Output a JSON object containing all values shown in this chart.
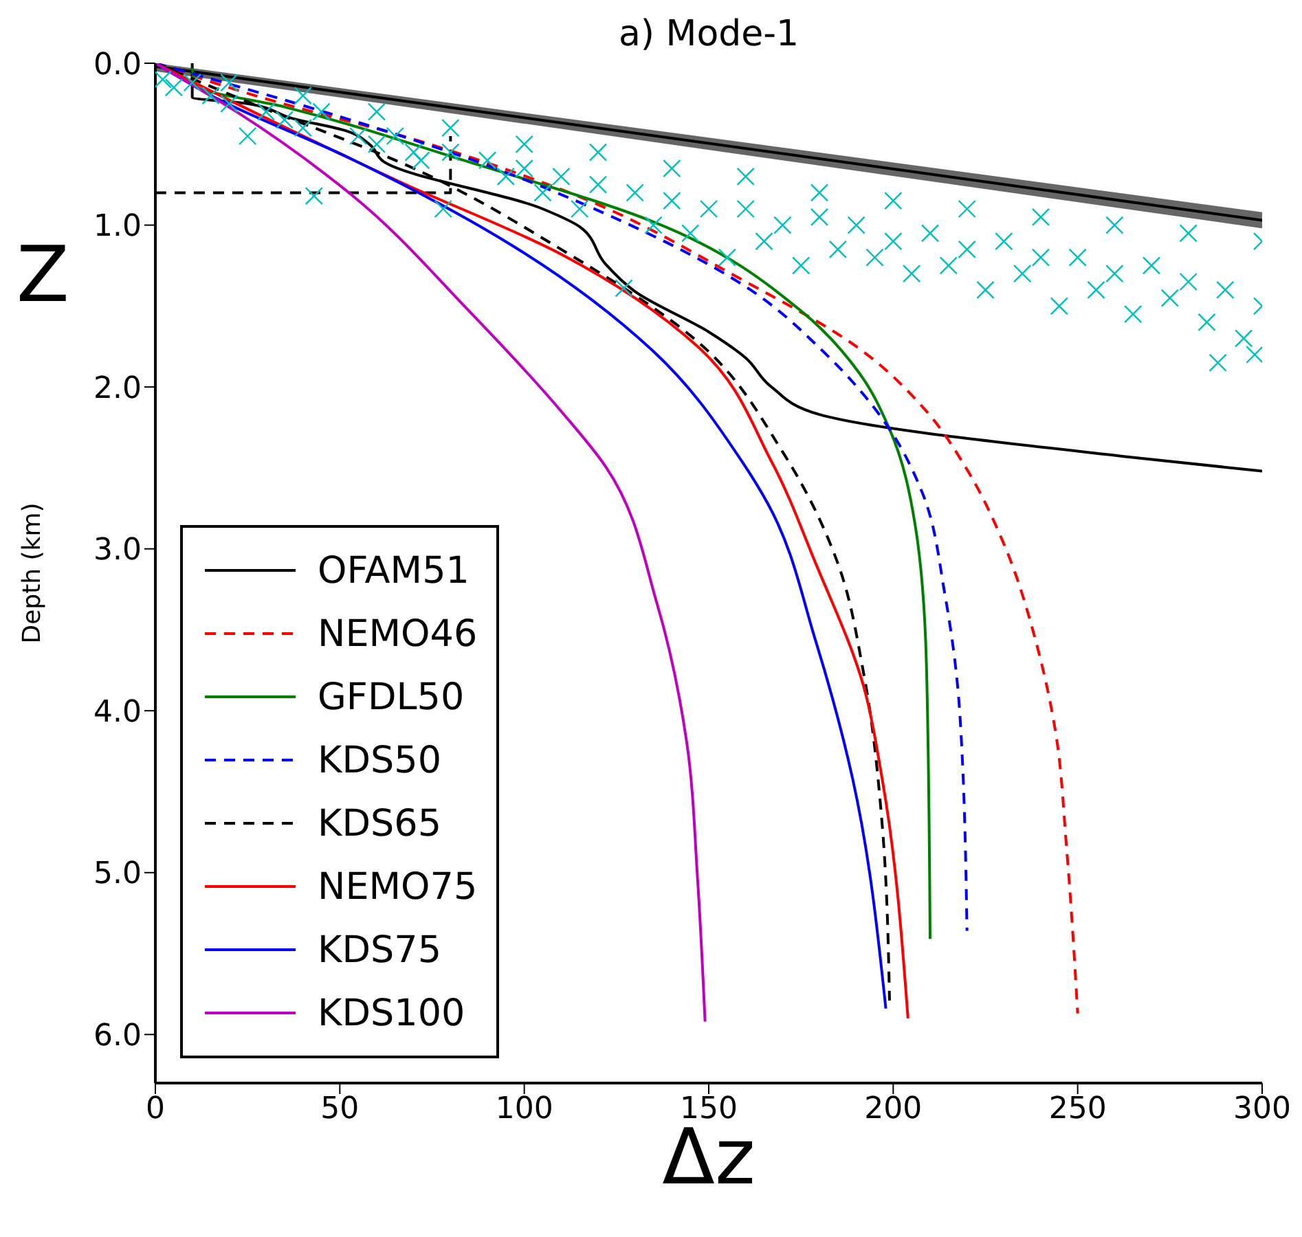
{
  "chart_data": {
    "type": "line",
    "title": "a) Mode-1",
    "xlabel": "Δz",
    "ylabel": "Depth (km)",
    "annotations": [
      "Z"
    ],
    "xlim": [
      0,
      300
    ],
    "xticks": [
      0,
      50,
      100,
      150,
      200,
      250,
      300
    ],
    "ylim": [
      6.3,
      0
    ],
    "yticks": [
      {
        "value": 0,
        "label": "0.0"
      },
      {
        "value": 1,
        "label": "1.0"
      },
      {
        "value": 2,
        "label": "2.0"
      },
      {
        "value": 3,
        "label": "3.0"
      },
      {
        "value": 4,
        "label": "4.0"
      },
      {
        "value": 5,
        "label": "5.0"
      },
      {
        "value": 6,
        "label": "6.0"
      }
    ],
    "grid": false,
    "legend": "bottom left",
    "line_style": "solid",
    "series": [
      {
        "type": "scatter",
        "marker": "cross",
        "color": "#00bfbf",
        "x": [
          2,
          5,
          10,
          15,
          20,
          25,
          30,
          35,
          40,
          43,
          45,
          55,
          60,
          65,
          70,
          72,
          78,
          80,
          90,
          95,
          100,
          105,
          110,
          115,
          120,
          127,
          130,
          135,
          140,
          145,
          150,
          155,
          160,
          165,
          170,
          175,
          180,
          185,
          190,
          195,
          200,
          205,
          210,
          215,
          220,
          225,
          230,
          235,
          240,
          245,
          250,
          255,
          260,
          265,
          270,
          275,
          280,
          285,
          288,
          290,
          295,
          300,
          298,
          260,
          240,
          220,
          200,
          180,
          160,
          140,
          120,
          100,
          80,
          60,
          40,
          20,
          280,
          300
        ],
        "values": [
          0.1,
          0.15,
          0.12,
          0.2,
          0.25,
          0.45,
          0.3,
          0.35,
          0.4,
          0.82,
          0.3,
          0.45,
          0.5,
          0.45,
          0.55,
          0.6,
          0.9,
          0.55,
          0.6,
          0.7,
          0.65,
          0.8,
          0.7,
          0.9,
          0.75,
          1.39,
          0.8,
          1.0,
          0.85,
          1.05,
          0.9,
          1.2,
          0.9,
          1.1,
          1.0,
          1.25,
          0.95,
          1.15,
          1.0,
          1.2,
          1.1,
          1.3,
          1.05,
          1.25,
          1.15,
          1.4,
          1.1,
          1.3,
          1.2,
          1.5,
          1.2,
          1.4,
          1.3,
          1.55,
          1.25,
          1.45,
          1.35,
          1.6,
          1.85,
          1.4,
          1.7,
          1.5,
          1.8,
          1.0,
          0.95,
          0.9,
          0.85,
          0.8,
          0.7,
          0.65,
          0.55,
          0.5,
          0.4,
          0.3,
          0.2,
          0.12,
          1.05,
          1.1
        ]
      },
      {
        "type": "line",
        "color": "#000000",
        "x": [
          0,
          300
        ],
        "values": [
          0.02,
          0.97
        ],
        "lower": [
          0,
          0.92
        ],
        "upper": [
          0.05,
          1.02
        ]
      },
      {
        "type": "line",
        "color": "#000000",
        "line_style": "dashed",
        "x": [
          0,
          80,
          80
        ],
        "values": [
          0.8,
          0.8,
          0.45
        ]
      },
      {
        "name": "OFAM51",
        "color": "#000000",
        "x": [
          10,
          10,
          25,
          37,
          52,
          58,
          62,
          105,
          115,
          122,
          130,
          150,
          160,
          167,
          180,
          263,
          300
        ],
        "values": [
          0,
          0.21,
          0.25,
          0.34,
          0.42,
          0.5,
          0.61,
          0.9,
          1.01,
          1.24,
          1.41,
          1.66,
          1.82,
          2.0,
          2.17,
          2.43,
          2.52
        ]
      },
      {
        "name": "NEMO46",
        "color": "#ff0000",
        "line_style": "dashed",
        "x": [
          0,
          27,
          70,
          110,
          160,
          190,
          209,
          220,
          230,
          239,
          244,
          247,
          250
        ],
        "values": [
          0,
          0.2,
          0.47,
          0.78,
          1.35,
          1.75,
          2.15,
          2.51,
          2.97,
          3.6,
          4.13,
          4.85,
          5.87
        ]
      },
      {
        "name": "GFDL50",
        "color": "#008000",
        "x": [
          10,
          11,
          35,
          85,
          135,
          175,
          191,
          199,
          206,
          209,
          210
        ],
        "values": [
          0.03,
          0.14,
          0.27,
          0.61,
          0.98,
          1.53,
          1.92,
          2.26,
          2.86,
          3.71,
          5.41
        ]
      },
      {
        "name": "KDS50",
        "color": "#0000ff",
        "line_style": "dashed",
        "x": [
          0,
          50,
          85,
          122,
          160,
          181,
          199,
          208,
          214,
          218,
          220
        ],
        "values": [
          0,
          0.33,
          0.59,
          0.93,
          1.38,
          1.78,
          2.26,
          2.66,
          3.28,
          4.0,
          5.36
        ]
      },
      {
        "name": "KDS65",
        "color": "#000000",
        "line_style": "dashed",
        "x": [
          0,
          22,
          72,
          110,
          147,
          170,
          185,
          192,
          197,
          199
        ],
        "values": [
          0,
          0.21,
          0.67,
          1.15,
          1.72,
          2.4,
          3.09,
          3.77,
          4.7,
          5.79
        ]
      },
      {
        "name": "NEMO75",
        "color": "#ff0000",
        "x": [
          0,
          22,
          66,
          110,
          147,
          167,
          179,
          192,
          197,
          204
        ],
        "values": [
          0,
          0.25,
          0.73,
          1.18,
          1.75,
          2.46,
          3.09,
          3.85,
          4.42,
          5.9
        ]
      },
      {
        "name": "KDS75",
        "color": "#0000ff",
        "x": [
          0,
          16,
          53,
          97,
          135,
          159,
          166,
          179,
          189,
          198
        ],
        "values": [
          0,
          0.21,
          0.59,
          1.13,
          1.78,
          2.46,
          2.72,
          3.57,
          4.42,
          5.84
        ]
      },
      {
        "name": "KDS100",
        "color": "#bf00bf",
        "x": [
          0,
          22,
          53,
          85,
          110,
          122,
          136,
          144,
          147,
          149
        ],
        "values": [
          0,
          0.3,
          0.81,
          1.53,
          2.15,
          2.49,
          3.34,
          4.19,
          5.05,
          5.92
        ]
      }
    ]
  }
}
